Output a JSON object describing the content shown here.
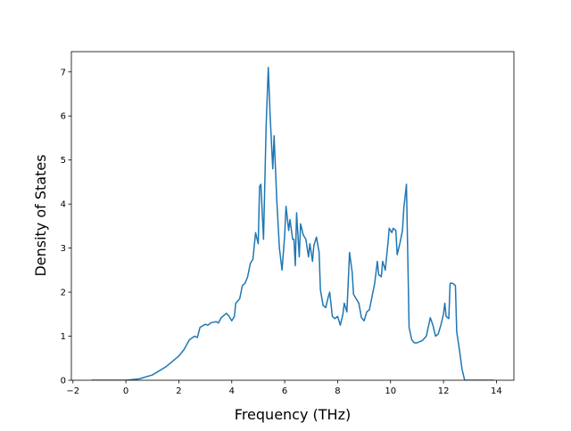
{
  "chart_data": {
    "type": "line",
    "xlabel": "Frequency (THz)",
    "ylabel": "Density of States",
    "xlim": [
      -2.06,
      14.66
    ],
    "ylim": [
      0,
      7.46
    ],
    "xticks": [
      {
        "value": -2,
        "label": "−2"
      },
      0,
      2,
      4,
      6,
      8,
      10,
      12,
      14
    ],
    "yticks": [
      0,
      1,
      2,
      3,
      4,
      5,
      6,
      7
    ],
    "series": [
      {
        "color": "#1f77b4",
        "x": [
          -1.3,
          0,
          0.5,
          1,
          1.5,
          2,
          2.2,
          2.4,
          2.6,
          2.7,
          2.8,
          3.0,
          3.1,
          3.2,
          3.4,
          3.5,
          3.6,
          3.8,
          3.9,
          4.0,
          4.1,
          4.15,
          4.3,
          4.4,
          4.5,
          4.6,
          4.7,
          4.8,
          4.9,
          5.0,
          5.05,
          5.1,
          5.2,
          5.3,
          5.38,
          5.45,
          5.55,
          5.6,
          5.7,
          5.8,
          5.9,
          6.0,
          6.05,
          6.15,
          6.2,
          6.3,
          6.35,
          6.4,
          6.45,
          6.55,
          6.6,
          6.7,
          6.8,
          6.9,
          6.95,
          7.05,
          7.1,
          7.2,
          7.3,
          7.35,
          7.45,
          7.55,
          7.65,
          7.7,
          7.8,
          7.9,
          8.0,
          8.1,
          8.2,
          8.25,
          8.35,
          8.45,
          8.55,
          8.6,
          8.7,
          8.8,
          8.9,
          9.0,
          9.1,
          9.2,
          9.3,
          9.4,
          9.5,
          9.55,
          9.65,
          9.7,
          9.8,
          9.9,
          9.95,
          10.05,
          10.1,
          10.2,
          10.25,
          10.35,
          10.45,
          10.5,
          10.6,
          10.7,
          10.8,
          10.9,
          11.0,
          11.2,
          11.35,
          11.5,
          11.6,
          11.7,
          11.8,
          11.9,
          12.0,
          12.05,
          12.1,
          12.2,
          12.25,
          12.35,
          12.45,
          12.5,
          12.6,
          12.7,
          12.8,
          13.9
        ],
        "values": [
          0,
          0,
          0.03,
          0.12,
          0.3,
          0.55,
          0.7,
          0.92,
          1.0,
          0.97,
          1.2,
          1.27,
          1.25,
          1.3,
          1.33,
          1.3,
          1.42,
          1.52,
          1.45,
          1.35,
          1.45,
          1.75,
          1.85,
          2.15,
          2.2,
          2.35,
          2.65,
          2.75,
          3.35,
          3.1,
          4.4,
          4.45,
          3.2,
          5.8,
          7.1,
          6.0,
          4.8,
          5.55,
          4.1,
          3.0,
          2.5,
          3.3,
          3.95,
          3.4,
          3.65,
          3.2,
          3.2,
          2.6,
          3.8,
          2.8,
          3.55,
          3.3,
          3.2,
          2.8,
          3.1,
          2.7,
          3.05,
          3.25,
          2.9,
          2.05,
          1.7,
          1.65,
          1.9,
          2.0,
          1.45,
          1.4,
          1.45,
          1.25,
          1.5,
          1.75,
          1.55,
          2.9,
          2.45,
          1.95,
          1.85,
          1.75,
          1.42,
          1.35,
          1.55,
          1.6,
          1.9,
          2.2,
          2.7,
          2.4,
          2.35,
          2.7,
          2.5,
          3.1,
          3.45,
          3.35,
          3.45,
          3.4,
          2.85,
          3.1,
          3.4,
          3.9,
          4.45,
          1.2,
          0.92,
          0.85,
          0.85,
          0.9,
          1.0,
          1.42,
          1.25,
          1.0,
          1.05,
          1.25,
          1.5,
          1.75,
          1.45,
          1.4,
          2.2,
          2.2,
          2.15,
          1.1,
          0.7,
          0.25,
          0,
          0
        ]
      }
    ]
  }
}
